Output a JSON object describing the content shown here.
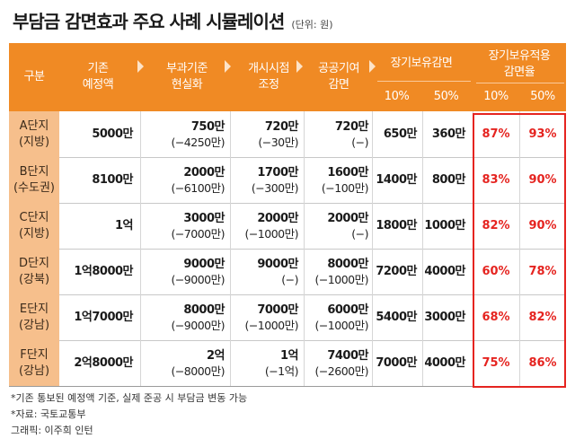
{
  "title": "부담금 감면효과 주요 사례 시뮬레이션",
  "unit": "(단위: 원)",
  "headers": {
    "category": "구분",
    "notified_1": "기존",
    "notified_2": "예정액",
    "realization_1": "부과기준",
    "realization_2": "현실화",
    "start_1": "개시시점",
    "start_2": "조정",
    "public_1": "공공기여",
    "public_2": "감면",
    "longterm": "장기보유감면",
    "rate_1": "장기보유적용",
    "rate_2": "감면율",
    "p10": "10%",
    "p50": "50%",
    "p10b": "10%",
    "p50b": "50%"
  },
  "rows": [
    {
      "name": "A단지",
      "region": "(지방)",
      "notified": "5000만",
      "real": "750만",
      "real_diff": "(−4250만)",
      "start": "720만",
      "start_diff": "(−30만)",
      "public": "720만",
      "public_diff": "(−)",
      "l10": "650만",
      "l50": "360만",
      "r10": "87%",
      "r50": "93%"
    },
    {
      "name": "B단지",
      "region": "(수도권)",
      "notified": "8100만",
      "real": "2000만",
      "real_diff": "(−6100만)",
      "start": "1700만",
      "start_diff": "(−300만)",
      "public": "1600만",
      "public_diff": "(−100만)",
      "l10": "1400만",
      "l50": "800만",
      "r10": "83%",
      "r50": "90%"
    },
    {
      "name": "C단지",
      "region": "(지방)",
      "notified": "1억",
      "real": "3000만",
      "real_diff": "(−7000만)",
      "start": "2000만",
      "start_diff": "(−1000만)",
      "public": "2000만",
      "public_diff": "(−)",
      "l10": "1800만",
      "l50": "1000만",
      "r10": "82%",
      "r50": "90%"
    },
    {
      "name": "D단지",
      "region": "(강북)",
      "notified": "1억8000만",
      "real": "9000만",
      "real_diff": "(−9000만)",
      "start": "9000만",
      "start_diff": "(−)",
      "public": "8000만",
      "public_diff": "(−1000만)",
      "l10": "7200만",
      "l50": "4000만",
      "r10": "60%",
      "r50": "78%"
    },
    {
      "name": "E단지",
      "region": "(강남)",
      "notified": "1억7000만",
      "real": "8000만",
      "real_diff": "(−9000만)",
      "start": "7000만",
      "start_diff": "(−1000만)",
      "public": "6000만",
      "public_diff": "(−1000만)",
      "l10": "5400만",
      "l50": "3000만",
      "r10": "68%",
      "r50": "82%"
    },
    {
      "name": "F단지",
      "region": "(강남)",
      "notified": "2억8000만",
      "real": "2억",
      "real_diff": "(−8000만)",
      "start": "1억",
      "start_diff": "(−1억)",
      "public": "7400만",
      "public_diff": "(−2600만)",
      "l10": "7000만",
      "l50": "4000만",
      "r10": "75%",
      "r50": "86%"
    }
  ],
  "notes": [
    "*기존 통보된 예정액 기준, 실제 준공 시 부담금 변동 가능",
    "*자료: 국토교통부",
    "그래픽: 이주희 인턴"
  ],
  "colors": {
    "header": "#f08a24",
    "stub": "#f6bf8c",
    "highlight": "#e52420"
  }
}
